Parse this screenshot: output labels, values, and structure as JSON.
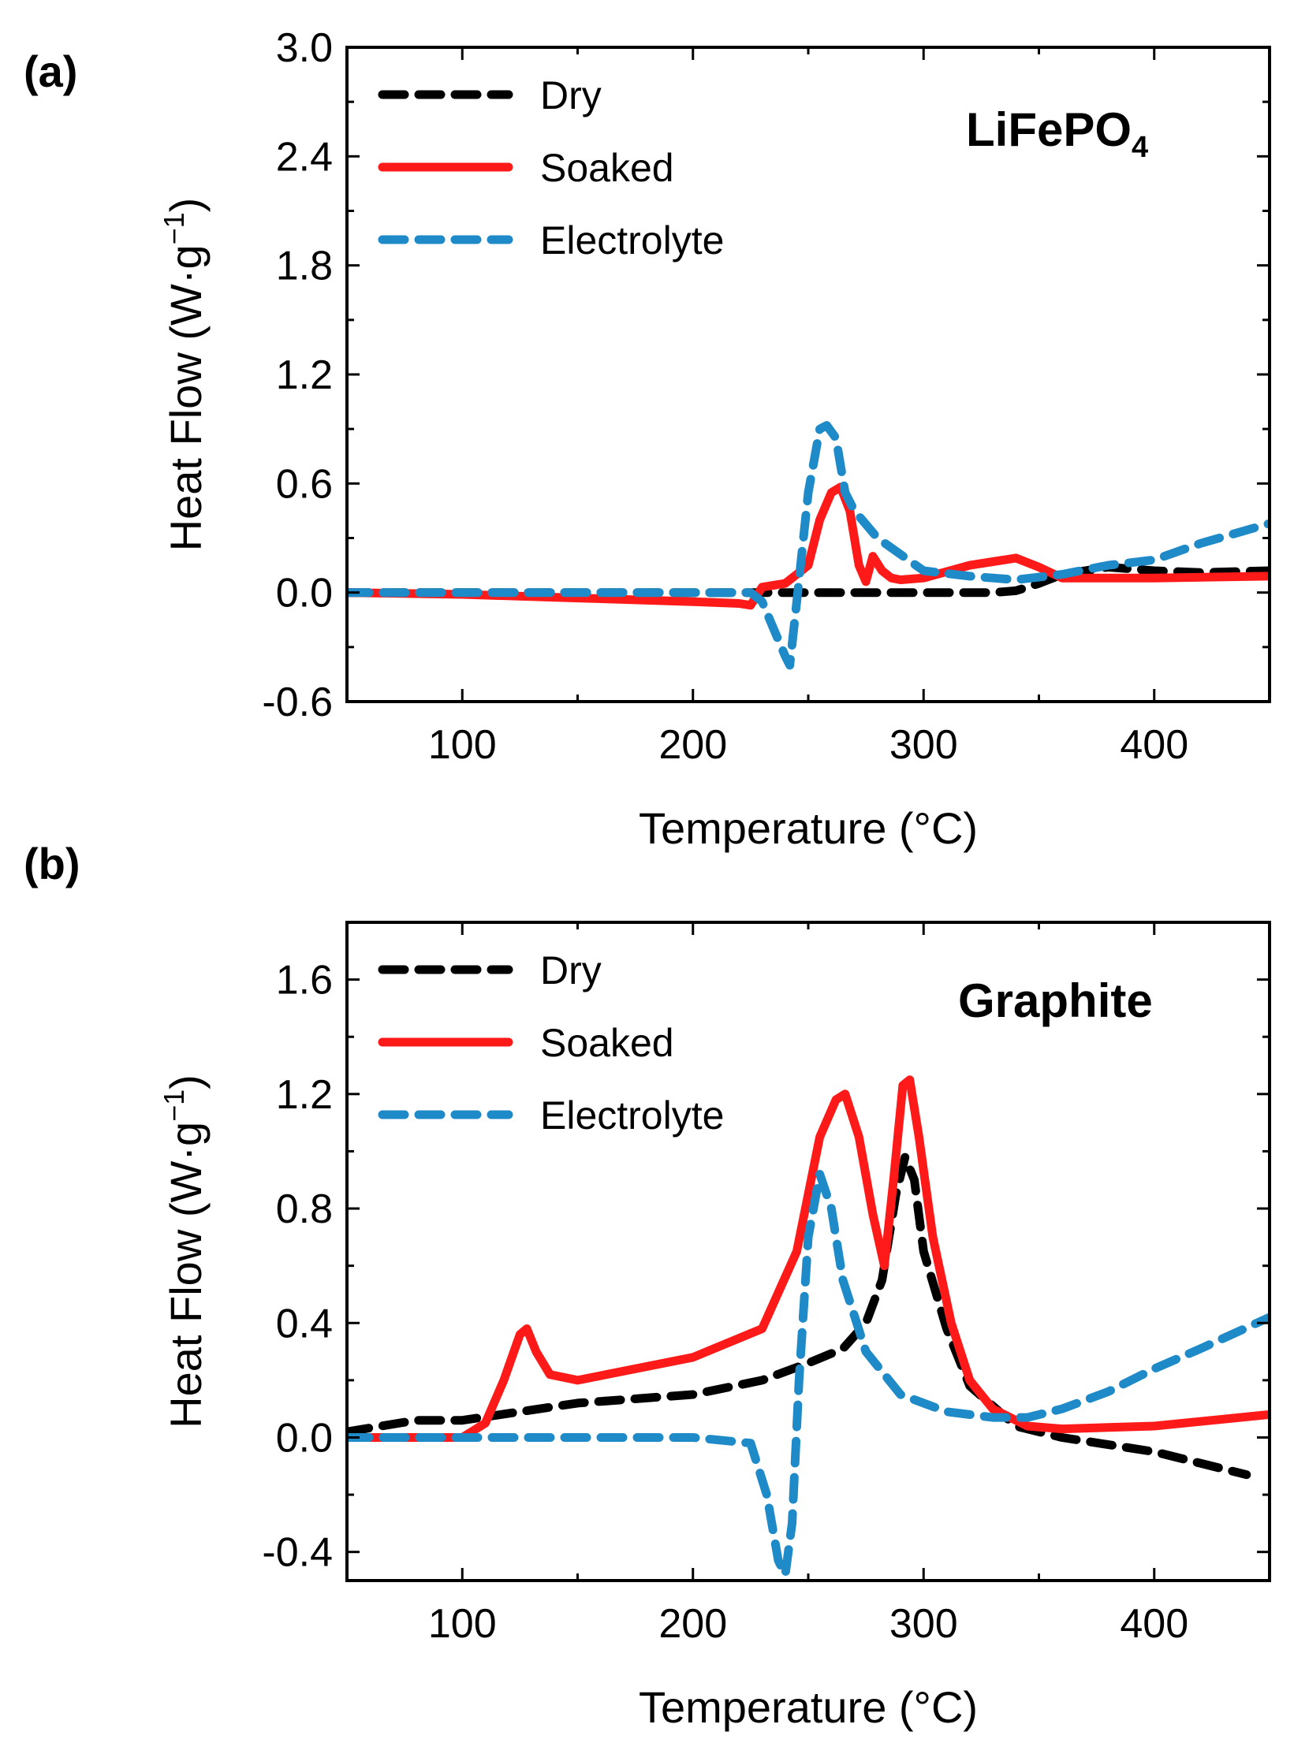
{
  "colors": {
    "dry": "#000000",
    "soaked": "#ff1a1a",
    "electrolyte": "#1f8ac8"
  },
  "chart_data": [
    {
      "panel": "(a)",
      "type": "line",
      "annotation": "LiFePO",
      "annotation_sub": "4",
      "xlabel": "Temperature (°C)",
      "ylabel_main": "Heat Flow (W·g",
      "ylabel_sup": "−1",
      "ylabel_close": ")",
      "xlim": [
        50,
        450
      ],
      "ylim": [
        -0.6,
        3.0
      ],
      "xticks": [
        100,
        200,
        300,
        400
      ],
      "xtick_labels": [
        "100",
        "200",
        "300",
        "400"
      ],
      "yticks": [
        -0.6,
        0.0,
        0.6,
        1.2,
        1.8,
        2.4,
        3.0
      ],
      "ytick_labels": [
        "-0.6",
        "0.0",
        "0.6",
        "1.2",
        "1.8",
        "2.4",
        "3.0"
      ],
      "legend": [
        "Dry",
        "Soaked",
        "Electrolyte"
      ],
      "legend_position": "top-left",
      "series": [
        {
          "name": "Dry",
          "style": "dashed",
          "x": [
            50,
            100,
            150,
            200,
            230,
            250,
            270,
            300,
            330,
            340,
            350,
            360,
            380,
            400,
            420,
            450
          ],
          "y": [
            0.0,
            0.0,
            0.0,
            0.0,
            0.0,
            0.0,
            0.0,
            0.0,
            0.0,
            0.01,
            0.05,
            0.1,
            0.14,
            0.12,
            0.11,
            0.12
          ]
        },
        {
          "name": "Soaked",
          "style": "solid",
          "x": [
            50,
            100,
            150,
            200,
            220,
            225,
            230,
            240,
            250,
            255,
            260,
            264,
            268,
            272,
            275,
            278,
            282,
            286,
            290,
            300,
            320,
            340,
            350,
            360,
            380,
            400,
            450
          ],
          "y": [
            0.0,
            -0.01,
            -0.03,
            -0.05,
            -0.06,
            -0.07,
            0.03,
            0.05,
            0.15,
            0.4,
            0.55,
            0.58,
            0.45,
            0.15,
            0.06,
            0.2,
            0.12,
            0.08,
            0.07,
            0.08,
            0.15,
            0.19,
            0.14,
            0.08,
            0.08,
            0.08,
            0.09
          ]
        },
        {
          "name": "Electrolyte",
          "style": "dashed",
          "x": [
            50,
            100,
            150,
            200,
            225,
            230,
            235,
            240,
            242,
            245,
            250,
            255,
            258,
            262,
            266,
            270,
            280,
            300,
            320,
            340,
            360,
            380,
            400,
            420,
            450
          ],
          "y": [
            0.0,
            0.0,
            0.0,
            0.0,
            0.0,
            -0.05,
            -0.2,
            -0.35,
            -0.4,
            -0.05,
            0.55,
            0.9,
            0.92,
            0.85,
            0.55,
            0.45,
            0.3,
            0.12,
            0.09,
            0.07,
            0.1,
            0.15,
            0.18,
            0.27,
            0.38
          ]
        }
      ]
    },
    {
      "panel": "(b)",
      "type": "line",
      "annotation": "Graphite",
      "annotation_sub": "",
      "xlabel": "Temperature (°C)",
      "ylabel_main": "Heat Flow (W·g",
      "ylabel_sup": "−1",
      "ylabel_close": ")",
      "xlim": [
        50,
        450
      ],
      "ylim": [
        -0.5,
        1.8
      ],
      "xticks": [
        100,
        200,
        300,
        400
      ],
      "xtick_labels": [
        "100",
        "200",
        "300",
        "400"
      ],
      "yticks": [
        -0.4,
        0.0,
        0.4,
        0.8,
        1.2,
        1.6
      ],
      "ytick_labels": [
        "-0.4",
        "0.0",
        "0.4",
        "0.8",
        "1.2",
        "1.6"
      ],
      "legend": [
        "Dry",
        "Soaked",
        "Electrolyte"
      ],
      "legend_position": "top-left",
      "series": [
        {
          "name": "Dry",
          "style": "dashed",
          "x": [
            50,
            80,
            100,
            150,
            200,
            230,
            250,
            265,
            275,
            282,
            288,
            292,
            296,
            300,
            310,
            320,
            340,
            360,
            400,
            440
          ],
          "y": [
            0.02,
            0.06,
            0.06,
            0.12,
            0.15,
            0.2,
            0.26,
            0.31,
            0.4,
            0.55,
            0.85,
            0.98,
            0.9,
            0.65,
            0.38,
            0.18,
            0.04,
            0.0,
            -0.05,
            -0.13
          ]
        },
        {
          "name": "Soaked",
          "style": "solid",
          "x": [
            50,
            100,
            110,
            118,
            125,
            128,
            132,
            138,
            150,
            200,
            230,
            245,
            255,
            262,
            266,
            272,
            278,
            283,
            287,
            291,
            294,
            298,
            304,
            312,
            320,
            330,
            345,
            360,
            400,
            450
          ],
          "y": [
            0.0,
            0.0,
            0.05,
            0.2,
            0.36,
            0.38,
            0.3,
            0.22,
            0.2,
            0.28,
            0.38,
            0.65,
            1.05,
            1.18,
            1.2,
            1.05,
            0.78,
            0.6,
            0.9,
            1.23,
            1.25,
            1.05,
            0.7,
            0.4,
            0.2,
            0.1,
            0.04,
            0.03,
            0.04,
            0.08
          ]
        },
        {
          "name": "Electrolyte",
          "style": "dashed",
          "x": [
            50,
            100,
            150,
            200,
            225,
            232,
            237,
            240,
            243,
            246,
            250,
            255,
            260,
            265,
            275,
            290,
            310,
            330,
            345,
            360,
            380,
            400,
            420,
            450
          ],
          "y": [
            0.0,
            0.0,
            0.0,
            0.0,
            -0.02,
            -0.2,
            -0.43,
            -0.48,
            -0.3,
            0.2,
            0.7,
            0.92,
            0.8,
            0.55,
            0.3,
            0.15,
            0.09,
            0.07,
            0.07,
            0.1,
            0.16,
            0.24,
            0.31,
            0.42
          ]
        }
      ]
    }
  ]
}
